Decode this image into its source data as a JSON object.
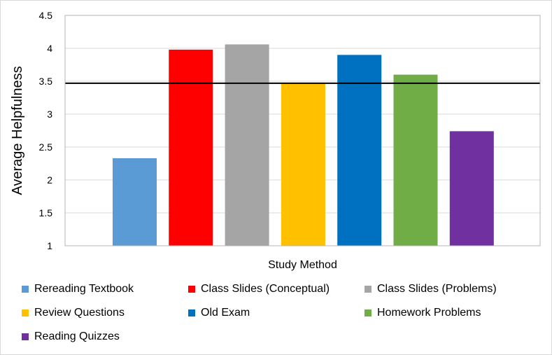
{
  "chart_data": {
    "type": "bar",
    "title": "",
    "xlabel": "Study Method",
    "ylabel": "Average Helpfulness",
    "ylim": [
      1,
      4.5
    ],
    "y_ticks": [
      "1",
      "1.5",
      "2",
      "2.5",
      "3",
      "3.5",
      "4",
      "4.5"
    ],
    "grid": true,
    "legend_position": "bottom",
    "reference_line": {
      "value": 3.47,
      "color": "#000000"
    },
    "categories": [
      "Rereading Textbook",
      "Class Slides (Conceptual)",
      "Class Slides (Problems)",
      "Review Questions",
      "Old Exam",
      "Homework Problems",
      "Reading Quizzes"
    ],
    "values": [
      2.33,
      3.98,
      4.06,
      3.47,
      3.9,
      3.6,
      2.74
    ],
    "colors": [
      "#5b9bd5",
      "#ff0000",
      "#a5a5a5",
      "#ffc000",
      "#0070c0",
      "#70ad47",
      "#7030a0"
    ]
  }
}
